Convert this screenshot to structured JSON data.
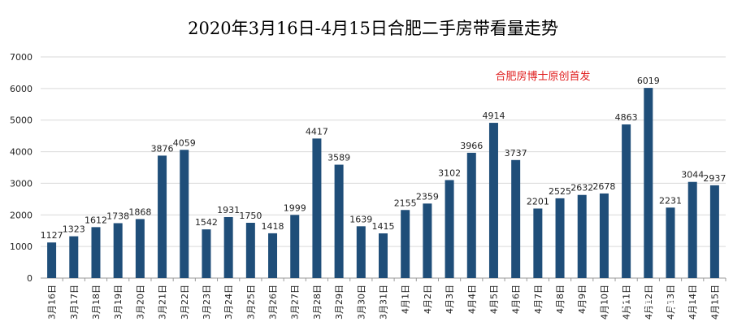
{
  "chart_data": {
    "type": "bar",
    "title": "2020年3月16日-4月15日合肥二手房带看量走势",
    "annotation": "合肥房博士原创首发",
    "watermark": "合肥房博士",
    "categories": [
      "3月16日",
      "3月17日",
      "3月18日",
      "3月19日",
      "3月20日",
      "3月21日",
      "3月22日",
      "3月23日",
      "3月24日",
      "3月25日",
      "3月26日",
      "3月27日",
      "3月28日",
      "3月29日",
      "3月30日",
      "3月31日",
      "4月1日",
      "4月2日",
      "4月3日",
      "4月4日",
      "4月5日",
      "4月6日",
      "4月7日",
      "4月8日",
      "4月9日",
      "4月10日",
      "4月11日",
      "4月12日",
      "4月13日",
      "4月14日",
      "4月15日"
    ],
    "values": [
      1127,
      1323,
      1612,
      1738,
      1868,
      3876,
      4059,
      1542,
      1931,
      1750,
      1418,
      1999,
      4417,
      3589,
      1639,
      1415,
      2155,
      2359,
      3102,
      3966,
      4914,
      3737,
      2201,
      2525,
      2632,
      2678,
      4863,
      6019,
      2231,
      3044,
      2937
    ],
    "ylim": [
      0,
      7000
    ],
    "yticks": [
      0,
      1000,
      2000,
      3000,
      4000,
      5000,
      6000,
      7000
    ],
    "grid": true,
    "bar_color": "#1f4e79",
    "annotation_color": "#e02020"
  }
}
